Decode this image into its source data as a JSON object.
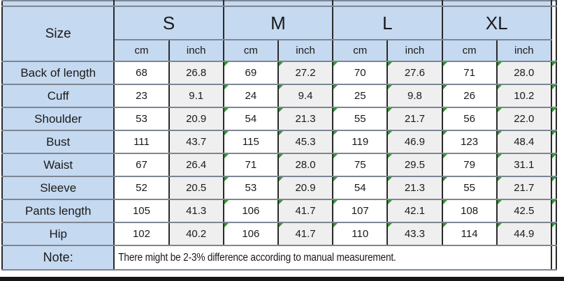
{
  "table": {
    "size_label": "Size",
    "sizes": [
      "S",
      "M",
      "L",
      "XL"
    ],
    "unit_headers": [
      "cm",
      "inch"
    ],
    "rows": [
      {
        "label": "Back of length",
        "values": [
          "68",
          "26.8",
          "69",
          "27.2",
          "70",
          "27.6",
          "71",
          "28.0"
        ]
      },
      {
        "label": "Cuff",
        "values": [
          "23",
          "9.1",
          "24",
          "9.4",
          "25",
          "9.8",
          "26",
          "10.2"
        ]
      },
      {
        "label": "Shoulder",
        "values": [
          "53",
          "20.9",
          "54",
          "21.3",
          "55",
          "21.7",
          "56",
          "22.0"
        ]
      },
      {
        "label": "Bust",
        "values": [
          "111",
          "43.7",
          "115",
          "45.3",
          "119",
          "46.9",
          "123",
          "48.4"
        ]
      },
      {
        "label": "Waist",
        "values": [
          "67",
          "26.4",
          "71",
          "28.0",
          "75",
          "29.5",
          "79",
          "31.1"
        ]
      },
      {
        "label": "Sleeve",
        "values": [
          "52",
          "20.5",
          "53",
          "20.9",
          "54",
          "21.3",
          "55",
          "21.7"
        ]
      },
      {
        "label": "Pants length",
        "values": [
          "105",
          "41.3",
          "106",
          "41.7",
          "107",
          "42.1",
          "108",
          "42.5"
        ]
      },
      {
        "label": "Hip",
        "values": [
          "102",
          "40.2",
          "106",
          "41.7",
          "110",
          "43.3",
          "114",
          "44.9"
        ]
      }
    ],
    "note_label": "Note:",
    "note_text": "There might be 2-3% difference according to manual measurement.",
    "colors": {
      "header_fill": "#C5D9F0",
      "inch_fill": "#EFEFEF",
      "cm_fill": "#FFFFFF",
      "error_triangle": "#2E9B2E",
      "bottom_bar": "#161616"
    }
  }
}
